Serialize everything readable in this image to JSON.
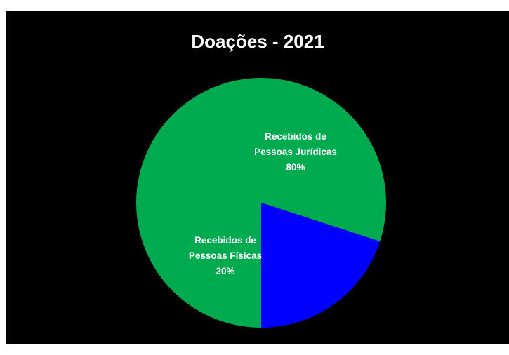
{
  "chart_data": {
    "type": "pie",
    "title": "Doações - 2021",
    "slices": [
      {
        "label_lines": [
          "Recebidos de",
          "Pessoas Jurídicas"
        ],
        "percent_label": "80%",
        "value": 80,
        "color": "#00AA4F"
      },
      {
        "label_lines": [
          "Recebidos de",
          "Pessoas Físicas"
        ],
        "percent_label": "20%",
        "value": 20,
        "color": "#0000FF"
      }
    ],
    "background": "#000000",
    "legend": "none",
    "data_labels": "on-slice"
  }
}
